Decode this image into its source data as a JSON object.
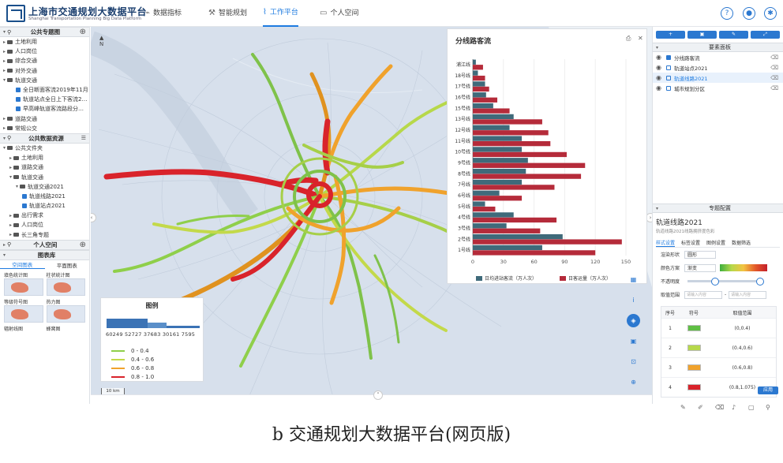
{
  "app": {
    "title_cn": "上海市交通规划大数据平台",
    "title_en": "Shanghai Transportation Planning Big Data Platform"
  },
  "nav": [
    {
      "label": "数据指标",
      "icon": "chart-icon"
    },
    {
      "label": "智能规划",
      "icon": "hammer-icon"
    },
    {
      "label": "工作平台",
      "icon": "chart-line-icon",
      "active": true
    },
    {
      "label": "个人空间",
      "icon": "folder-icon"
    }
  ],
  "top_icons": [
    "help-icon",
    "user-icon",
    "settings-icon"
  ],
  "left": {
    "public_topics_title": "公共专题图",
    "topics": [
      "土地利用",
      "人口岗位",
      "综合交通",
      "对外交通",
      "轨道交通"
    ],
    "rail_children": [
      "全日断面客流2019年11月",
      "轨道站点全日上下客流2…",
      "早高峰轨道客流路段分…"
    ],
    "topics_more": [
      "道路交通",
      "常规公交"
    ],
    "public_data_title": "公共数据资源",
    "data_tree": [
      "公共文件夹",
      "土地利用",
      "道路交通",
      "轨道交通",
      "轨道交通2021",
      "轨道线路2021",
      "轨道站点2021",
      "出行需求",
      "人口岗位",
      "长三角专题"
    ],
    "personal_title": "个人空间",
    "chart_lib_title": "图表库",
    "chart_tabs": [
      "空间图表",
      "平面图表"
    ],
    "thumbs": [
      "填色统计图",
      "柱状统计图",
      "等级符号图",
      "热力图",
      "辐射线图",
      "蜂窝图"
    ]
  },
  "legend": {
    "title": "图例",
    "numbers": "60249 52727 37683 30161 7595",
    "items": [
      "0 - 0.4",
      "0.4 - 0.6",
      "0.6 - 0.8",
      "0.8 - 1.0"
    ],
    "colors": [
      "#8fcf4a",
      "#c3d94a",
      "#f0a22c",
      "#d9232b"
    ],
    "scale": "10 km"
  },
  "chart_panel": {
    "title": "分线路客流",
    "legend": [
      "日均进站客流（万人次）",
      "日客运量（万人次）"
    ],
    "colors": [
      "#3f6a7a",
      "#b52b3a"
    ]
  },
  "chart_data": {
    "type": "bar",
    "orientation": "horizontal",
    "title": "分线路客流",
    "categories": [
      "浦江线",
      "18号线",
      "17号线",
      "16号线",
      "15号线",
      "13号线",
      "12号线",
      "11号线",
      "10号线",
      "9号线",
      "8号线",
      "7号线",
      "6号线",
      "5号线",
      "4号线",
      "3号线",
      "2号线",
      "1号线"
    ],
    "series": [
      {
        "name": "日均进站客流（万人次）",
        "values": [
          3,
          5,
          12,
          13,
          20,
          40,
          36,
          48,
          48,
          54,
          52,
          48,
          26,
          12,
          40,
          33,
          88,
          68
        ]
      },
      {
        "name": "日客运量（万人次）",
        "values": [
          10,
          12,
          16,
          24,
          36,
          68,
          74,
          76,
          92,
          110,
          106,
          80,
          48,
          22,
          82,
          66,
          146,
          120
        ]
      }
    ],
    "xlim": [
      0,
      150
    ],
    "xticks": [
      0,
      30,
      60,
      90,
      120,
      150
    ]
  },
  "right": {
    "buttons": [
      "+",
      "▣",
      "✎",
      "⤢"
    ],
    "feature_title": "要素面板",
    "layers": [
      {
        "label": "分线路客流",
        "checked": true
      },
      {
        "label": "轨道站点2021",
        "checked": false
      },
      {
        "label": "轨道线路2021",
        "checked": false,
        "selected": true
      },
      {
        "label": "城市规划分区",
        "checked": false
      }
    ],
    "config_title": "专题配置",
    "layer_name": "轨道线路2021",
    "layer_sub": "轨道线路2021线路拥挤度色彩",
    "tabs": [
      "样式设置",
      "标签设置",
      "图例设置",
      "数据筛选"
    ],
    "form": {
      "shape_k": "渲染形状",
      "shape_v": "圆形",
      "color_k": "颜色方案",
      "color_v": "渐变",
      "opacity_k": "不透明度",
      "range_k": "取值范围",
      "range_a": "请输入内容",
      "range_b": "请输入内容"
    },
    "table_head": [
      "序号",
      "符号",
      "取值范围"
    ],
    "table": [
      {
        "n": "1",
        "c": "#5fbf44",
        "r": "(0,0.4)"
      },
      {
        "n": "2",
        "c": "#b6d84b",
        "r": "(0.4,0.6)"
      },
      {
        "n": "3",
        "c": "#f0a22c",
        "r": "(0.6,0.8)"
      },
      {
        "n": "4",
        "c": "#d9232b",
        "r": "(0.8,1.075)"
      }
    ],
    "apply": "应用"
  },
  "caption": "b 交通规划大数据平台(网页版)"
}
